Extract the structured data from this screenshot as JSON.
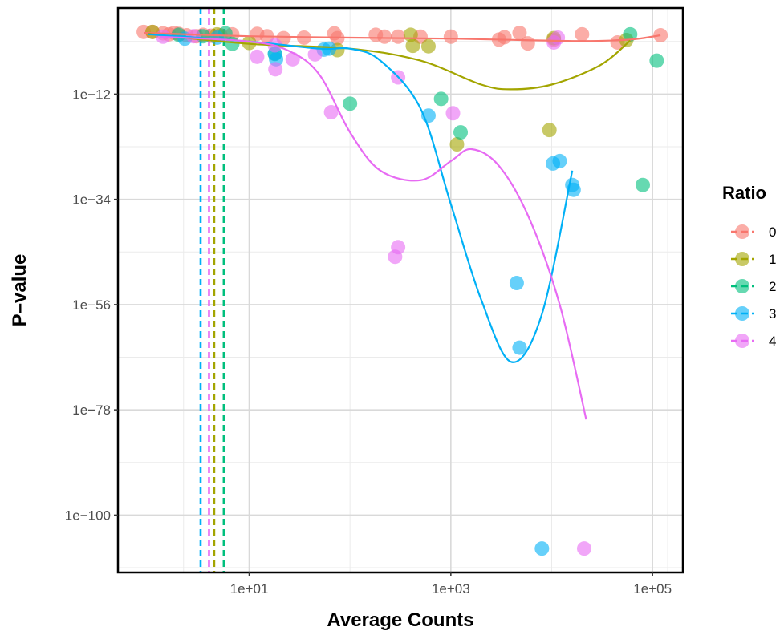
{
  "chart_data": {
    "type": "scatter",
    "xlabel": "Average Counts",
    "ylabel": "P–value",
    "x_scale": "log10",
    "y_scale": "log10",
    "xlim": [
      0.5,
      200000
    ],
    "ylim": [
      -112,
      6
    ],
    "x_ticks": [
      {
        "value": 10,
        "label": "1e+01"
      },
      {
        "value": 1000,
        "label": "1e+03"
      },
      {
        "value": 100000,
        "label": "1e+05"
      }
    ],
    "y_ticks": [
      {
        "exp": -12,
        "label": "1e−12"
      },
      {
        "exp": -34,
        "label": "1e−34"
      },
      {
        "exp": -56,
        "label": "1e−56"
      },
      {
        "exp": -78,
        "label": "1e−78"
      },
      {
        "exp": -100,
        "label": "1e−100"
      }
    ],
    "grid": true,
    "legend": {
      "title": "Ratio",
      "position": "right"
    },
    "series": [
      {
        "name": "0",
        "color": "#F8766D",
        "points": [
          [
            0.9,
            1
          ],
          [
            1.1,
            1
          ],
          [
            1.4,
            0.7
          ],
          [
            1.6,
            0.5
          ],
          [
            1.8,
            0.8
          ],
          [
            2.0,
            0.6
          ],
          [
            2.4,
            0.3
          ],
          [
            3.0,
            0.1
          ],
          [
            3.5,
            0.4
          ],
          [
            4.2,
            0.2
          ],
          [
            5.2,
            0.3
          ],
          [
            6.8,
            0.5
          ],
          [
            12,
            0.6
          ],
          [
            15,
            0.1
          ],
          [
            22,
            -0.3
          ],
          [
            35,
            -0.2
          ],
          [
            70,
            0.7
          ],
          [
            75,
            -0.3
          ],
          [
            180,
            0.4
          ],
          [
            220,
            0
          ],
          [
            300,
            0
          ],
          [
            500,
            0
          ],
          [
            1000,
            0
          ],
          [
            3000,
            -0.6
          ],
          [
            3400,
            -0.1
          ],
          [
            4800,
            0.8
          ],
          [
            5800,
            -1.4
          ],
          [
            10500,
            -0.6
          ],
          [
            20000,
            0.5
          ],
          [
            45000,
            -1.2
          ],
          [
            120000,
            0.3
          ]
        ],
        "trend": [
          [
            0.9,
            0.8
          ],
          [
            10,
            0.1
          ],
          [
            100,
            -0.2
          ],
          [
            1000,
            -0.4
          ],
          [
            5000,
            -0.7
          ],
          [
            20000,
            -0.9
          ],
          [
            60000,
            -0.6
          ],
          [
            120000,
            0.3
          ]
        ],
        "threshold": null
      },
      {
        "name": "1",
        "color": "#A3A500",
        "points": [
          [
            1.1,
            1
          ],
          [
            4.8,
            0.5
          ],
          [
            10,
            -1.3
          ],
          [
            75,
            -2.8
          ],
          [
            400,
            0.4
          ],
          [
            420,
            -1.9
          ],
          [
            600,
            -2
          ],
          [
            1150,
            -22.5
          ],
          [
            9500,
            -19.5
          ],
          [
            10500,
            -0.3
          ],
          [
            55000,
            -0.7
          ]
        ],
        "trend": [
          [
            1,
            0.6
          ],
          [
            10,
            -1.5
          ],
          [
            100,
            -2.5
          ],
          [
            500,
            -5
          ],
          [
            2000,
            -10
          ],
          [
            4000,
            -11
          ],
          [
            10000,
            -10
          ],
          [
            30000,
            -6
          ],
          [
            60000,
            -0.8
          ]
        ],
        "threshold": 4.5
      },
      {
        "name": "2",
        "color": "#00BF7D",
        "points": [
          [
            2.0,
            0.4
          ],
          [
            3.5,
            0.1
          ],
          [
            5.8,
            0.7
          ],
          [
            6.8,
            -1.5
          ],
          [
            18,
            -3.6
          ],
          [
            100,
            -14
          ],
          [
            800,
            -13
          ],
          [
            1250,
            -20
          ],
          [
            60000,
            0.5
          ],
          [
            80000,
            -31
          ],
          [
            110000,
            -5
          ]
        ],
        "trend": null,
        "threshold": 5.6
      },
      {
        "name": "3",
        "color": "#00B0F6",
        "points": [
          [
            2.3,
            -0.4
          ],
          [
            4.8,
            -0.2
          ],
          [
            18,
            -3.5
          ],
          [
            18.5,
            -4.7
          ],
          [
            55,
            -2.7
          ],
          [
            62,
            -2.5
          ],
          [
            600,
            -16.5
          ],
          [
            4500,
            -51.5
          ],
          [
            4800,
            -65
          ],
          [
            8000,
            -107
          ],
          [
            10300,
            -26.5
          ],
          [
            12000,
            -26
          ],
          [
            16000,
            -31
          ],
          [
            16500,
            -32
          ]
        ],
        "trend": [
          [
            1,
            0.5
          ],
          [
            10,
            -1
          ],
          [
            50,
            -2.5
          ],
          [
            100,
            -2.5
          ],
          [
            200,
            -5
          ],
          [
            500,
            -15
          ],
          [
            1000,
            -35
          ],
          [
            2000,
            -55
          ],
          [
            4000,
            -68
          ],
          [
            8000,
            -58
          ],
          [
            16000,
            -28
          ]
        ],
        "threshold": 3.3
      },
      {
        "name": "4",
        "color": "#E76BF3",
        "points": [
          [
            1.4,
            0
          ],
          [
            2.8,
            0.1
          ],
          [
            12,
            -4.2
          ],
          [
            18,
            -1.8
          ],
          [
            18.2,
            -6.8
          ],
          [
            27,
            -4.7
          ],
          [
            45,
            -3.7
          ],
          [
            65,
            -15.8
          ],
          [
            280,
            -46
          ],
          [
            300,
            -44
          ],
          [
            300,
            -8.5
          ],
          [
            1050,
            -16
          ],
          [
            10500,
            -1.2
          ],
          [
            11500,
            -0.2
          ],
          [
            21000,
            -107
          ]
        ],
        "trend": [
          [
            1.3,
            0
          ],
          [
            10,
            -1
          ],
          [
            25,
            -3
          ],
          [
            50,
            -8
          ],
          [
            100,
            -20
          ],
          [
            200,
            -28
          ],
          [
            500,
            -30
          ],
          [
            1000,
            -26
          ],
          [
            1600,
            -23.5
          ],
          [
            3000,
            -27
          ],
          [
            6000,
            -38
          ],
          [
            12000,
            -56
          ],
          [
            22000,
            -80
          ]
        ],
        "threshold": 4.0
      }
    ]
  }
}
